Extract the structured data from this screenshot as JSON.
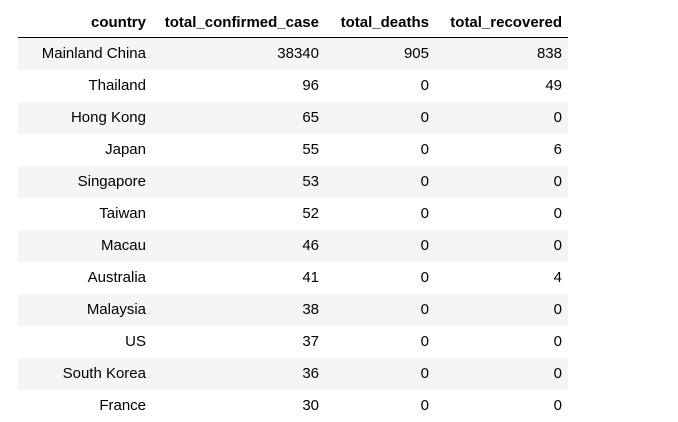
{
  "table": {
    "columns": [
      "country",
      "total_confirmed_case",
      "total_deaths",
      "total_recovered"
    ],
    "rows": [
      [
        "Mainland China",
        "38340",
        "905",
        "838"
      ],
      [
        "Thailand",
        "96",
        "0",
        "49"
      ],
      [
        "Hong Kong",
        "65",
        "0",
        "0"
      ],
      [
        "Japan",
        "55",
        "0",
        "6"
      ],
      [
        "Singapore",
        "53",
        "0",
        "0"
      ],
      [
        "Taiwan",
        "52",
        "0",
        "0"
      ],
      [
        "Macau",
        "46",
        "0",
        "0"
      ],
      [
        "Australia",
        "41",
        "0",
        "4"
      ],
      [
        "Malaysia",
        "38",
        "0",
        "0"
      ],
      [
        "US",
        "37",
        "0",
        "0"
      ],
      [
        "South Korea",
        "36",
        "0",
        "0"
      ],
      [
        "France",
        "30",
        "0",
        "0"
      ]
    ]
  }
}
